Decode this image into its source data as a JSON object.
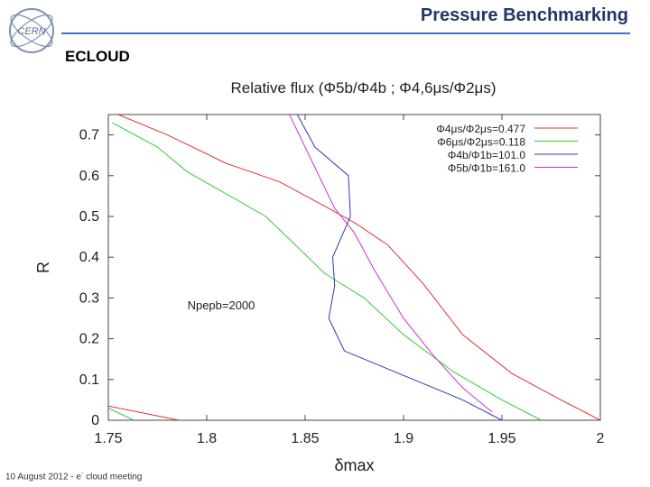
{
  "header": {
    "title": "Pressure Benchmarking",
    "logo_text": "CERN"
  },
  "section": {
    "label": "ECLOUD"
  },
  "footer": {
    "date": "10 August 2012",
    "separator": "-",
    "note_prefix": "e",
    "note_sup": "-",
    "note_suffix": "cloud meeting"
  },
  "chart_data": {
    "type": "line",
    "title": "Relative flux (Φ5b/Φ4b ; Φ4,6μs/Φ2μs)",
    "xlabel": "δmax",
    "ylabel": "R",
    "xlim": [
      1.75,
      2.0
    ],
    "ylim": [
      0,
      0.75
    ],
    "xticks": [
      "1.75",
      "1.8",
      "1.85",
      "1.9",
      "1.95",
      "2"
    ],
    "yticks": [
      "0",
      "0.1",
      "0.2",
      "0.3",
      "0.4",
      "0.5",
      "0.6",
      "0.7"
    ],
    "grid": false,
    "legend_position": "top-right",
    "annotation": "Npepb=2000",
    "series": [
      {
        "name": "Φ4μs/Φ2μs=0.477",
        "color": "#dd3333",
        "x": [
          1.755,
          1.78,
          1.81,
          1.837,
          1.86,
          1.875,
          1.892,
          1.91,
          1.93,
          1.955,
          1.98,
          2.0
        ],
        "y": [
          0.75,
          0.7,
          0.63,
          0.585,
          0.525,
          0.485,
          0.43,
          0.335,
          0.21,
          0.115,
          0.05,
          0.0
        ]
      },
      {
        "name": "Φ6μs/Φ2μs=0.118",
        "color": "#33cc33",
        "x": [
          1.752,
          1.775,
          1.79,
          1.83,
          1.86,
          1.88,
          1.9,
          1.925,
          1.95,
          1.97
        ],
        "y": [
          0.73,
          0.67,
          0.61,
          0.5,
          0.36,
          0.3,
          0.21,
          0.12,
          0.05,
          0.0
        ]
      },
      {
        "name": "Φ4b/Φ1b=101.0",
        "color": "#3333bb",
        "x": [
          1.846,
          1.855,
          1.872,
          1.873,
          1.864,
          1.865,
          1.862,
          1.87,
          1.9,
          1.915,
          1.93,
          1.95
        ],
        "y": [
          0.75,
          0.67,
          0.6,
          0.5,
          0.4,
          0.33,
          0.25,
          0.17,
          0.11,
          0.08,
          0.05,
          0.0
        ]
      },
      {
        "name": "Φ5b/Φ1b=161.0",
        "color": "#cc33cc",
        "x": [
          1.842,
          1.855,
          1.865,
          1.875,
          1.885,
          1.9,
          1.915,
          1.93,
          1.945
        ],
        "y": [
          0.75,
          0.62,
          0.52,
          0.46,
          0.37,
          0.25,
          0.16,
          0.08,
          0.02
        ]
      },
      {
        "name": "",
        "color": "#dd3333",
        "x": [
          1.75,
          1.786
        ],
        "y": [
          0.035,
          0.0
        ]
      },
      {
        "name": "",
        "color": "#33cc33",
        "x": [
          1.75,
          1.763
        ],
        "y": [
          0.03,
          0.0
        ]
      }
    ]
  }
}
